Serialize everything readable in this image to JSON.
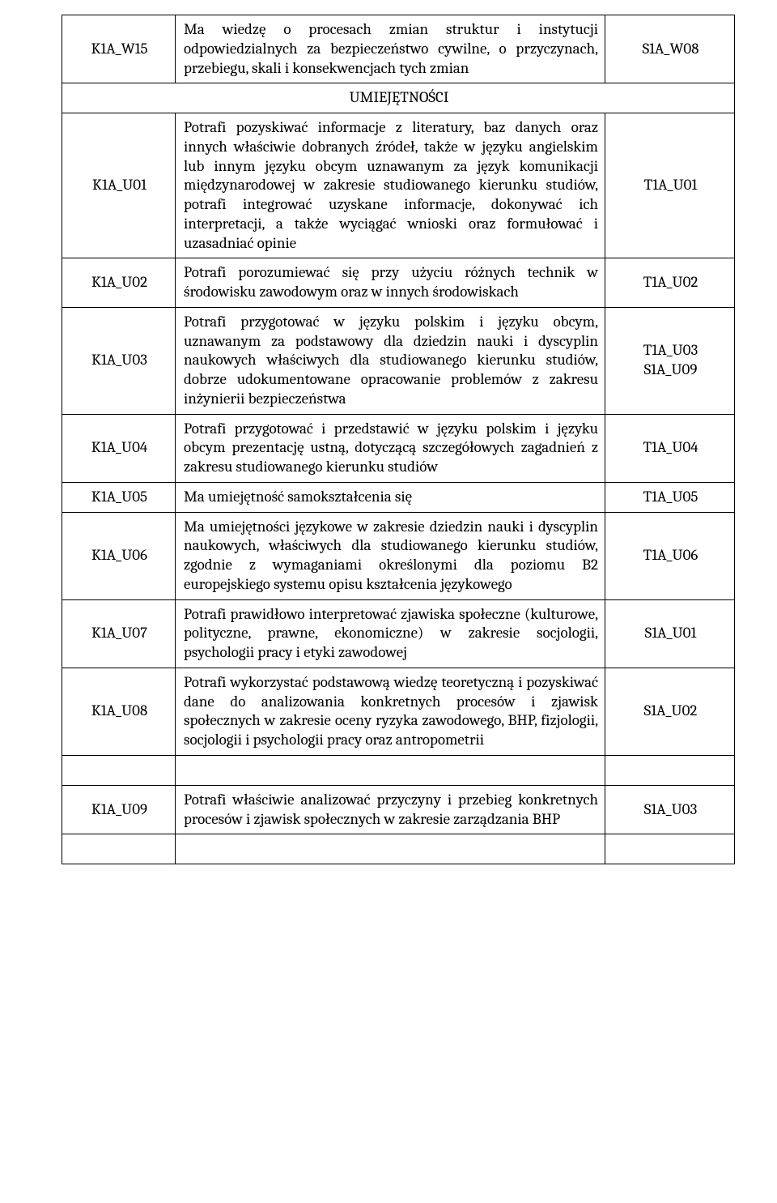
{
  "section_heading": "UMIEJĘTNOŚCI",
  "rows": [
    {
      "code": "K1A_W15",
      "desc": "Ma wiedzę o procesach zmian struktur i instytucji odpowiedzialnych za bezpieczeństwo cywilne, o przyczynach, przebiegu, skali i konsekwencjach tych zmian",
      "ref": "S1A_W08"
    },
    {
      "code": "K1A_U01",
      "desc": "Potrafi pozyskiwać informacje z literatury, baz danych oraz innych właściwie dobranych źródeł, także w języku angielskim lub innym języku obcym uznawanym za język komunikacji międzynarodowej w zakresie studiowanego kierunku studiów, potrafi integrować uzyskane informacje, dokonywać ich interpretacji, a także wyciągać wnioski oraz formułować i uzasadniać opinie",
      "ref": "T1A_U01"
    },
    {
      "code": "K1A_U02",
      "desc": "Potrafi porozumiewać się przy użyciu różnych technik w środowisku zawodowym oraz w innych środowiskach",
      "ref": "T1A_U02"
    },
    {
      "code": "K1A_U03",
      "desc": "Potrafi przygotować w języku polskim i języku obcym, uznawanym za podstawowy dla dziedzin nauki i dyscyplin naukowych właściwych dla studiowanego kierunku studiów, dobrze udokumentowane opracowanie problemów z zakresu inżynierii bezpieczeństwa",
      "ref": "T1A_U03\nS1A_U09"
    },
    {
      "code": "K1A_U04",
      "desc": "Potrafi przygotować i przedstawić w języku polskim i języku obcym prezentację ustną, dotyczącą szczegółowych zagadnień z zakresu studiowanego kierunku studiów",
      "ref": "T1A_U04"
    },
    {
      "code": "K1A_U05",
      "desc": "Ma umiejętność samokształcenia się",
      "ref": "T1A_U05"
    },
    {
      "code": "K1A_U06",
      "desc": "Ma umiejętności językowe w zakresie dziedzin nauki i dyscyplin naukowych, właściwych dla studiowanego kierunku studiów, zgodnie z wymaganiami określonymi dla poziomu B2 europejskiego systemu opisu kształcenia językowego",
      "ref": "T1A_U06"
    },
    {
      "code": "K1A_U07",
      "desc": "Potrafi prawidłowo interpretować zjawiska społeczne (kulturowe, polityczne, prawne, ekonomiczne) w zakresie socjologii, psychologii pracy i etyki zawodowej",
      "ref": "S1A_U01"
    },
    {
      "code": "K1A_U08",
      "desc": "Potrafi wykorzystać podstawową wiedzę teoretyczną i pozyskiwać dane do analizowania konkretnych procesów i zjawisk społecznych w zakresie oceny ryzyka zawodowego, BHP, fizjologii, socjologii i psychologii pracy oraz antropometrii",
      "ref": "S1A_U02"
    },
    {
      "code": "K1A_U09",
      "desc": "Potrafi właściwie analizować przyczyny i przebieg konkretnych procesów i zjawisk społecznych w zakresie zarządzania BHP",
      "ref": "S1A_U03"
    }
  ]
}
